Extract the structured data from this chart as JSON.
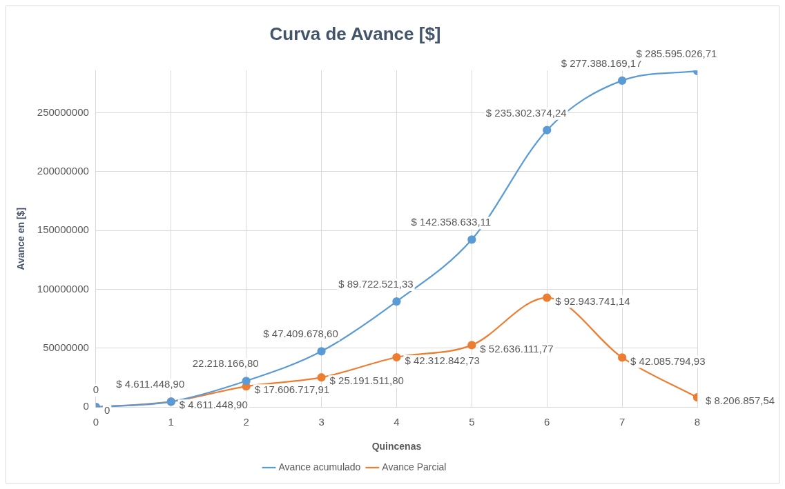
{
  "chart_data": {
    "type": "line",
    "title": "Curva de Avance [$]",
    "xlabel": "Quincenas",
    "ylabel": "Avance en [$]",
    "x": [
      0,
      1,
      2,
      3,
      4,
      5,
      6,
      7,
      8
    ],
    "series": [
      {
        "name": "Avance acumulado",
        "color": "#5b9bd5",
        "values": [
          0,
          4611448.9,
          22218166.8,
          47409678.6,
          89722521.33,
          142358633.11,
          235302374.24,
          277388169.17,
          285595026.71
        ],
        "value_labels": [
          "0",
          "$ 4.611.448,90",
          "22.218.166,80",
          "$ 47.409.678,60",
          "$ 89.722.521,33",
          "$ 142.358.633,11",
          "$ 235.302.374,24",
          "$ 277.388.169,17",
          "$ 285.595.026,71"
        ]
      },
      {
        "name": "Avance Parcial",
        "color": "#ed7d31",
        "values": [
          0,
          4611448.9,
          17606717.91,
          25191511.8,
          42312842.73,
          52636111.77,
          92943741.14,
          42085794.93,
          8206857.54
        ],
        "value_labels": [
          "0",
          "$ 4.611.448,90",
          "$ 17.606.717,91",
          "$ 25.191.511,80",
          "$ 42.312.842,73",
          "$ 52.636.111,77",
          "$ 92.943.741,14",
          "$ 42.085.794,93",
          "$ 8.206.857,54"
        ]
      }
    ],
    "xlim": [
      0,
      8
    ],
    "xticks": [
      0,
      1,
      2,
      3,
      4,
      5,
      6,
      7,
      8
    ],
    "ylim": [
      0,
      286000000
    ],
    "yticks": [
      0,
      50000000,
      100000000,
      150000000,
      200000000,
      250000000
    ],
    "grid": true,
    "legend": "bottom",
    "marker": "circle",
    "line_style": "solid"
  }
}
